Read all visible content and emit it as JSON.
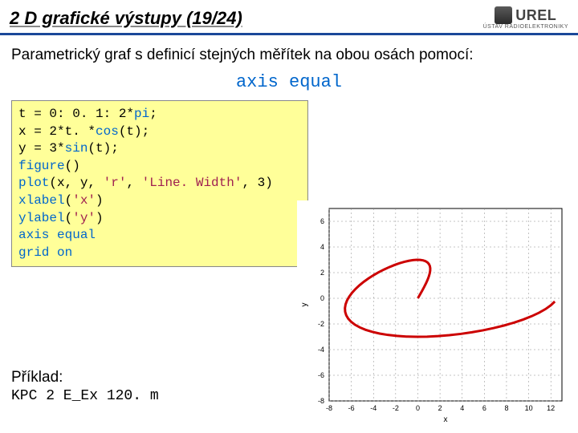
{
  "header": {
    "title": "2 D grafické výstupy (19/24)",
    "logo_text": "UREL",
    "logo_sub": "ÚSTAV RADIOELEKTRONIKY"
  },
  "intro": "Parametrický graf s definicí stejných měřítek na obou osách pomocí:",
  "command": "axis equal",
  "code": {
    "lines": [
      {
        "pre": "t = 0: 0. 1: 2*",
        "kw": "pi",
        "post": ";"
      },
      {
        "pre": "x = 2*t. *",
        "kw": "cos",
        "post": "(t);"
      },
      {
        "pre": "y = 3*",
        "kw": "sin",
        "post": "(t);"
      },
      {
        "kw": "figure",
        "post": "()"
      },
      {
        "kw": "plot",
        "post_open": "(x, y, ",
        "s1": "'r'",
        "mid": ", ",
        "s2": "'Line. Width'",
        "end": ", 3)"
      },
      {
        "kw": "xlabel",
        "post_open": "(",
        "s1": "'x'",
        "end": ")"
      },
      {
        "kw": "ylabel",
        "post_open": "(",
        "s1": "'y'",
        "end": ")"
      },
      {
        "kw": "axis",
        "post": " ",
        "kw2": "equal"
      },
      {
        "kw": "grid",
        "post": " ",
        "kw2": "on"
      }
    ]
  },
  "example": {
    "label": "Příklad:",
    "file": "KPC 2 E_Ex 120. m"
  },
  "chart": {
    "type": "line",
    "title": "",
    "xlabel": "x",
    "ylabel": "y",
    "xlim": [
      -8,
      13
    ],
    "ylim": [
      -8,
      7
    ],
    "xticks": [
      -8,
      -6,
      -4,
      -2,
      0,
      2,
      4,
      6,
      8,
      10,
      12
    ],
    "yticks": [
      -8,
      -6,
      -4,
      -2,
      0,
      2,
      4,
      6
    ],
    "line_color": "#cc0000",
    "line_width": 3,
    "grid_color": "#888888",
    "background_color": "#ffffff",
    "axis_color": "#000000",
    "tick_fontsize": 9,
    "label_fontsize": 10,
    "t_start": 0,
    "t_end": 6.283185307,
    "t_step": 0.1,
    "x_expr": "2*t*cos(t)",
    "y_expr": "3*sin(t)"
  }
}
